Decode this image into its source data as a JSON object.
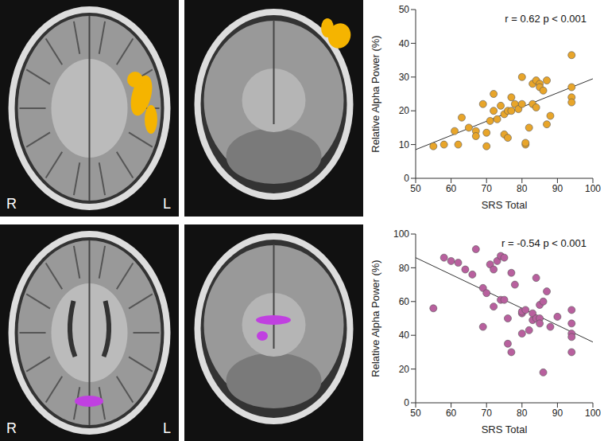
{
  "chart_data": [
    {
      "type": "scatter",
      "annotation": "r = 0.62 p < 0.001",
      "x_label": "SRS Total",
      "y_label": "Relative Alpha Power (%)",
      "color": "#e8a52a",
      "xlim": [
        50,
        100
      ],
      "xticks": [
        50,
        60,
        70,
        80,
        90,
        100
      ],
      "ylim": [
        0,
        50
      ],
      "yticks": [
        0,
        10,
        20,
        30,
        40,
        50
      ],
      "x": [
        55,
        58,
        61,
        62,
        63,
        65,
        67,
        67,
        69,
        70,
        70,
        71,
        72,
        72,
        73,
        74,
        75,
        75,
        76,
        76,
        77,
        77,
        78,
        79,
        80,
        80,
        81,
        81,
        82,
        83,
        83,
        84,
        84,
        85,
        85,
        86,
        87,
        87,
        88,
        94,
        94,
        94,
        94
      ],
      "values": [
        9.5,
        10,
        14,
        10,
        18,
        15,
        14,
        12.5,
        22,
        9.5,
        13.5,
        17,
        20,
        25,
        17.5,
        21.5,
        13,
        19,
        20,
        12,
        20,
        24,
        22,
        20.5,
        30,
        22,
        10,
        10.5,
        15,
        22,
        28,
        29,
        21,
        28,
        27,
        26,
        29,
        16,
        18.5,
        36.5,
        27,
        24,
        22.5
      ],
      "trend_line": {
        "x": [
          50,
          100
        ],
        "y": [
          8.5,
          29.5
        ]
      }
    },
    {
      "type": "scatter",
      "annotation": "r = -0.54 p < 0.001",
      "x_label": "SRS Total",
      "y_label": "Relative Alpha Power (%)",
      "color": "#b8609e",
      "xlim": [
        50,
        100
      ],
      "xticks": [
        50,
        60,
        70,
        80,
        90,
        100
      ],
      "ylim": [
        0,
        100
      ],
      "yticks": [
        0,
        20,
        40,
        60,
        80,
        100
      ],
      "x": [
        55,
        58,
        60,
        62,
        64,
        66,
        67,
        69,
        69,
        70,
        71,
        72,
        72,
        73,
        74,
        74,
        75,
        75,
        76,
        76,
        77,
        77,
        78,
        80,
        80,
        80,
        81,
        82,
        83,
        83,
        84,
        84,
        85,
        85,
        85,
        86,
        86,
        87,
        88,
        90,
        94,
        94,
        94,
        94,
        94
      ],
      "values": [
        56,
        86,
        84,
        83,
        79,
        76,
        91,
        68,
        45,
        65,
        82,
        57,
        79,
        84,
        87,
        61,
        61,
        86,
        35,
        50,
        77,
        30,
        70,
        41,
        53,
        54,
        55,
        43,
        49,
        53,
        50,
        74,
        58,
        50,
        47,
        18,
        60,
        66,
        45,
        51,
        47,
        41,
        39,
        55,
        30
      ],
      "trend_line": {
        "x": [
          50,
          100
        ],
        "y": [
          86,
          36
        ]
      }
    }
  ],
  "brain_panels": [
    {
      "labels": [
        "R",
        "L"
      ],
      "color": "#f5b400"
    },
    {
      "labels": [
        "R",
        "L"
      ],
      "color": "#c040e0"
    }
  ]
}
